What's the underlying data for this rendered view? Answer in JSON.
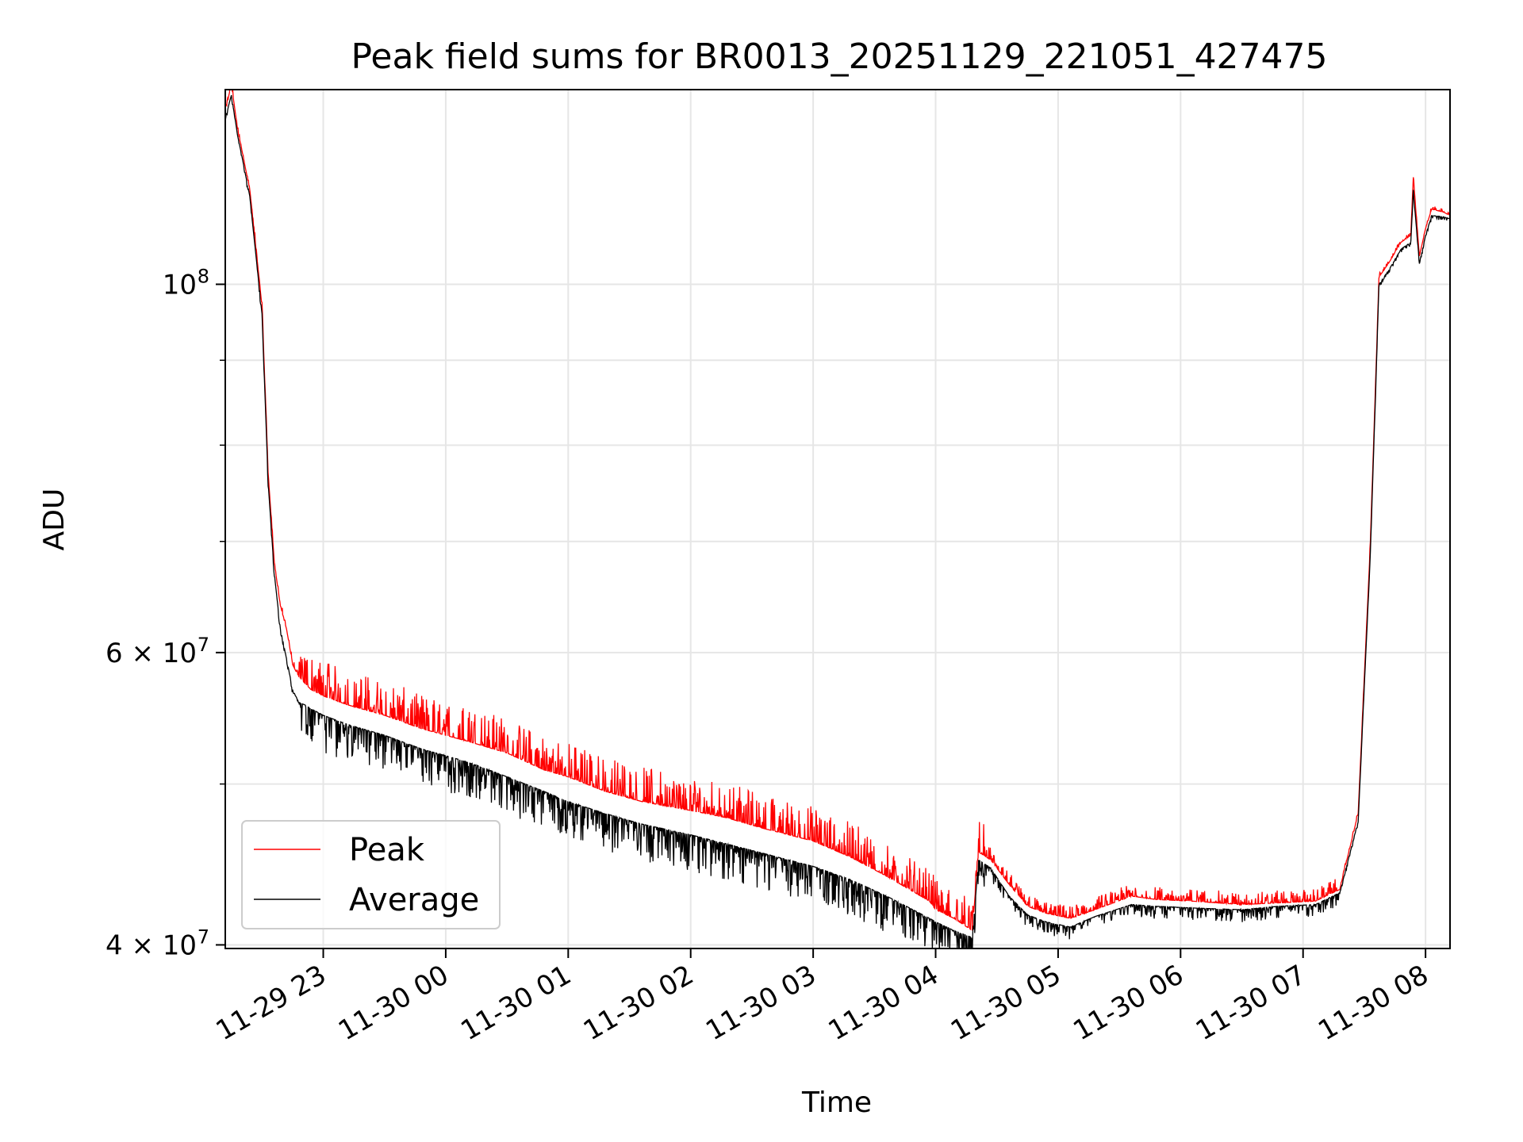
{
  "chart_data": {
    "type": "line",
    "title": "Peak field sums for BR0013_20251129_221051_427475",
    "xlabel": "Time",
    "ylabel": "ADU",
    "yscale": "log",
    "xlim_hours": [
      -1.8,
      8.2
    ],
    "ylim": [
      39800000,
      131000000
    ],
    "grid": true,
    "legend_position": "lower-left",
    "x_tick_values": [
      -1,
      0,
      1,
      2,
      3,
      4,
      5,
      6,
      7,
      8
    ],
    "x_tick_labels": [
      "11-29 23",
      "11-30 00",
      "11-30 01",
      "11-30 02",
      "11-30 03",
      "11-30 04",
      "11-30 05",
      "11-30 06",
      "11-30 07",
      "11-30 08"
    ],
    "y_major_ticks": [
      {
        "value": 100000000,
        "base": "10",
        "exp": "8"
      },
      {
        "value": 60000000,
        "base": "6 × 10",
        "exp": "7"
      },
      {
        "value": 40000000,
        "base": "4 × 10",
        "exp": "7"
      }
    ],
    "y_minor_grid": [
      50000000,
      70000000,
      80000000,
      90000000
    ],
    "series": [
      {
        "name": "Peak",
        "color": "#ff0000",
        "noise_up": 0.05,
        "x": [
          -1.82,
          -1.8,
          -1.75,
          -1.7,
          -1.66,
          -1.6,
          -1.5,
          -1.45,
          -1.4,
          -1.35,
          -1.3,
          -1.25,
          -1.2,
          -1.15,
          -1.1,
          -1.0,
          -0.8,
          -0.5,
          -0.2,
          0.2,
          0.5,
          0.8,
          1.0,
          1.3,
          1.6,
          2.0,
          2.3,
          2.6,
          3.0,
          3.3,
          3.6,
          3.95,
          4.0,
          4.15,
          4.3,
          4.35,
          4.45,
          4.6,
          4.75,
          4.9,
          5.1,
          5.3,
          5.6,
          5.8,
          6.1,
          6.5,
          6.8,
          7.1,
          7.3,
          7.45,
          7.55,
          7.62,
          7.7,
          7.8,
          7.88,
          7.9,
          7.95,
          8.0,
          8.05,
          8.15,
          8.2
        ],
        "y": [
          123000000,
          127000000,
          132000000,
          124000000,
          120000000,
          114000000,
          97000000,
          77000000,
          68000000,
          64000000,
          62000000,
          59000000,
          58000000,
          57500000,
          57000000,
          56500000,
          55800000,
          55000000,
          54000000,
          53000000,
          52200000,
          51000000,
          50500000,
          49500000,
          48800000,
          48200000,
          47700000,
          47000000,
          46200000,
          45200000,
          44000000,
          42500000,
          42000000,
          41500000,
          40800000,
          45500000,
          45000000,
          43500000,
          42200000,
          41800000,
          41500000,
          42000000,
          42800000,
          42600000,
          42500000,
          42300000,
          42400000,
          42500000,
          43200000,
          48000000,
          70000000,
          101000000,
          103000000,
          106000000,
          107000000,
          116000000,
          104000000,
          108000000,
          111000000,
          110500000,
          110000000
        ]
      },
      {
        "name": "Average",
        "color": "#000000",
        "noise_down": 0.05,
        "x": [
          -1.82,
          -1.8,
          -1.75,
          -1.7,
          -1.66,
          -1.6,
          -1.5,
          -1.45,
          -1.4,
          -1.35,
          -1.3,
          -1.25,
          -1.2,
          -1.15,
          -1.1,
          -1.0,
          -0.8,
          -0.5,
          -0.2,
          0.2,
          0.5,
          0.8,
          1.0,
          1.3,
          1.6,
          2.0,
          2.3,
          2.6,
          3.0,
          3.3,
          3.6,
          3.95,
          4.0,
          4.15,
          4.3,
          4.35,
          4.45,
          4.6,
          4.75,
          4.9,
          5.1,
          5.3,
          5.6,
          5.8,
          6.1,
          6.5,
          6.8,
          7.1,
          7.3,
          7.45,
          7.55,
          7.62,
          7.7,
          7.8,
          7.88,
          7.9,
          7.95,
          8.0,
          8.05,
          8.15,
          8.2
        ],
        "y": [
          122000000,
          126000000,
          130000000,
          123000000,
          119000000,
          113000000,
          96000000,
          76000000,
          67000000,
          62000000,
          59500000,
          57000000,
          56000000,
          55800000,
          55500000,
          55000000,
          54300000,
          53500000,
          52500000,
          51500000,
          50500000,
          49500000,
          48800000,
          48000000,
          47300000,
          46600000,
          46000000,
          45400000,
          44600000,
          43800000,
          42800000,
          41500000,
          41300000,
          40800000,
          40400000,
          45000000,
          44500000,
          42800000,
          41700000,
          41300000,
          41000000,
          41600000,
          42300000,
          42200000,
          42100000,
          42000000,
          42200000,
          42300000,
          43000000,
          47500000,
          69000000,
          100000000,
          102000000,
          105000000,
          106000000,
          114000000,
          103000000,
          107000000,
          110000000,
          109800000,
          109500000
        ]
      }
    ]
  }
}
